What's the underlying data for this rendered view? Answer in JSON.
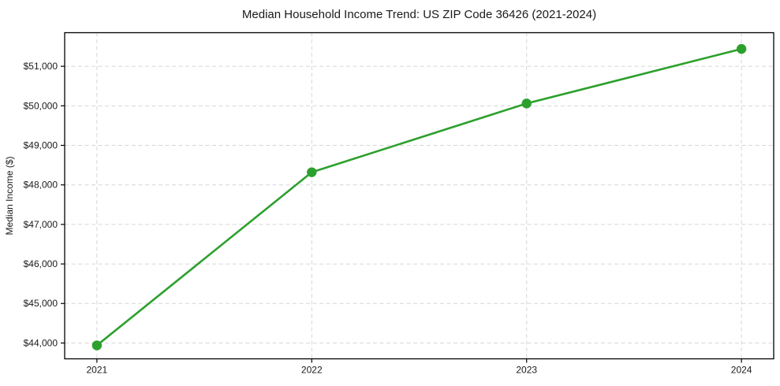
{
  "chart_data": {
    "type": "line",
    "title": "Median Household Income Trend: US ZIP Code 36426 (2021-2024)",
    "xlabel": "",
    "ylabel": "Median Income ($)",
    "x": [
      2021,
      2022,
      2023,
      2024
    ],
    "values": [
      43940,
      48320,
      50060,
      51440
    ],
    "xlim": [
      2020.85,
      2024.15
    ],
    "ylim": [
      43600,
      51850
    ],
    "xticks": [
      {
        "value": 2021,
        "label": "2021"
      },
      {
        "value": 2022,
        "label": "2022"
      },
      {
        "value": 2023,
        "label": "2023"
      },
      {
        "value": 2024,
        "label": "2024"
      }
    ],
    "yticks": [
      {
        "value": 44000,
        "label": "$44,000"
      },
      {
        "value": 45000,
        "label": "$45,000"
      },
      {
        "value": 46000,
        "label": "$46,000"
      },
      {
        "value": 47000,
        "label": "$47,000"
      },
      {
        "value": 48000,
        "label": "$48,000"
      },
      {
        "value": 49000,
        "label": "$49,000"
      },
      {
        "value": 50000,
        "label": "$50,000"
      },
      {
        "value": 51000,
        "label": "$51,000"
      }
    ],
    "line_color": "#2ca02c",
    "marker": "circle",
    "marker_color": "#2ca02c",
    "grid": {
      "visible": true,
      "style": "dashed",
      "color": "#d6d6d6"
    },
    "legend": {
      "visible": false
    },
    "frame_color": "#000000",
    "text_color": "#1a1a1a",
    "background_color": "#ffffff"
  }
}
